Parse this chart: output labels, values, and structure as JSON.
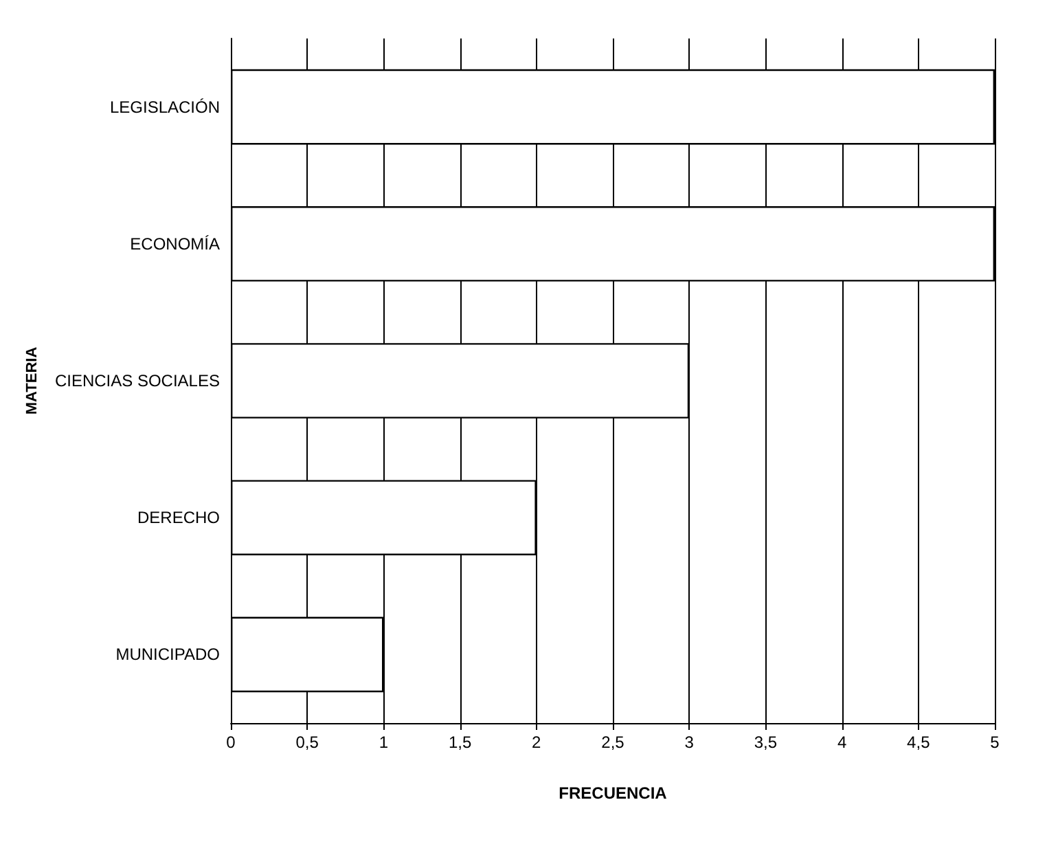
{
  "chart_data": {
    "type": "bar",
    "orientation": "horizontal",
    "xlabel": "FRECUENCIA",
    "ylabel": "MATERIA",
    "categories": [
      "LEGISLACIÓN",
      "ECONOMÍA",
      "CIENCIAS SOCIALES",
      "DERECHO",
      "MUNICIPADO"
    ],
    "values": [
      5,
      5,
      3,
      2,
      1
    ],
    "color": "#ffffff",
    "xlim": [
      0,
      5
    ],
    "xticks": [
      0,
      {
        "value": 0.5,
        "label": "0,5"
      },
      1,
      {
        "value": 1.5,
        "label": "1,5"
      },
      2,
      {
        "value": 2.5,
        "label": "2,5"
      },
      3,
      {
        "value": 3.5,
        "label": "3,5"
      },
      4,
      {
        "value": 4.5,
        "label": "4,5"
      },
      5
    ],
    "grid": "x"
  }
}
